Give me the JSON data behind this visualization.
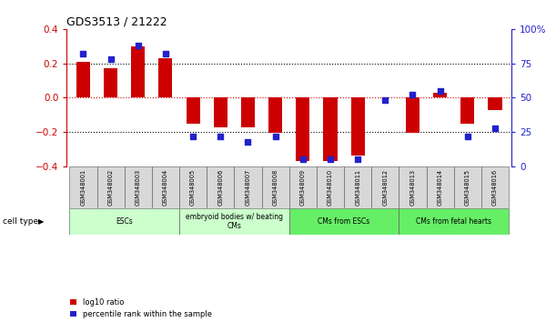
{
  "title": "GDS3513 / 21222",
  "samples": [
    "GSM348001",
    "GSM348002",
    "GSM348003",
    "GSM348004",
    "GSM348005",
    "GSM348006",
    "GSM348007",
    "GSM348008",
    "GSM348009",
    "GSM348010",
    "GSM348011",
    "GSM348012",
    "GSM348013",
    "GSM348014",
    "GSM348015",
    "GSM348016"
  ],
  "log10_ratio": [
    0.21,
    0.17,
    0.3,
    0.23,
    -0.15,
    -0.175,
    -0.175,
    -0.205,
    -0.37,
    -0.37,
    -0.335,
    0.0,
    -0.205,
    0.03,
    -0.15,
    -0.07
  ],
  "percentile_rank": [
    82,
    78,
    88,
    82,
    22,
    22,
    18,
    22,
    5,
    5,
    5,
    48,
    52,
    55,
    22,
    28
  ],
  "bar_color": "#cc0000",
  "dot_color": "#2222cc",
  "ylim": [
    -0.4,
    0.4
  ],
  "y2lim": [
    0,
    100
  ],
  "yticks_left": [
    -0.4,
    -0.2,
    0.0,
    0.2,
    0.4
  ],
  "yticks_right": [
    0,
    25,
    50,
    75,
    100
  ],
  "hline_color": "#cc0000",
  "dotted_hlines": [
    -0.2,
    0.2
  ],
  "cell_type_groups": [
    {
      "label": "ESCs",
      "start": 0,
      "end": 3,
      "light": true
    },
    {
      "label": "embryoid bodies w/ beating\nCMs",
      "start": 4,
      "end": 7,
      "light": true
    },
    {
      "label": "CMs from ESCs",
      "start": 8,
      "end": 11,
      "light": false
    },
    {
      "label": "CMs from fetal hearts",
      "start": 12,
      "end": 15,
      "light": false
    }
  ],
  "color_light": "#ccffcc",
  "color_dark": "#66ee66",
  "cell_type_label": "cell type",
  "legend_items": [
    {
      "label": "log10 ratio",
      "color": "#cc0000"
    },
    {
      "label": "percentile rank within the sample",
      "color": "#2222cc"
    }
  ],
  "bar_width": 0.5,
  "dot_size": 20
}
